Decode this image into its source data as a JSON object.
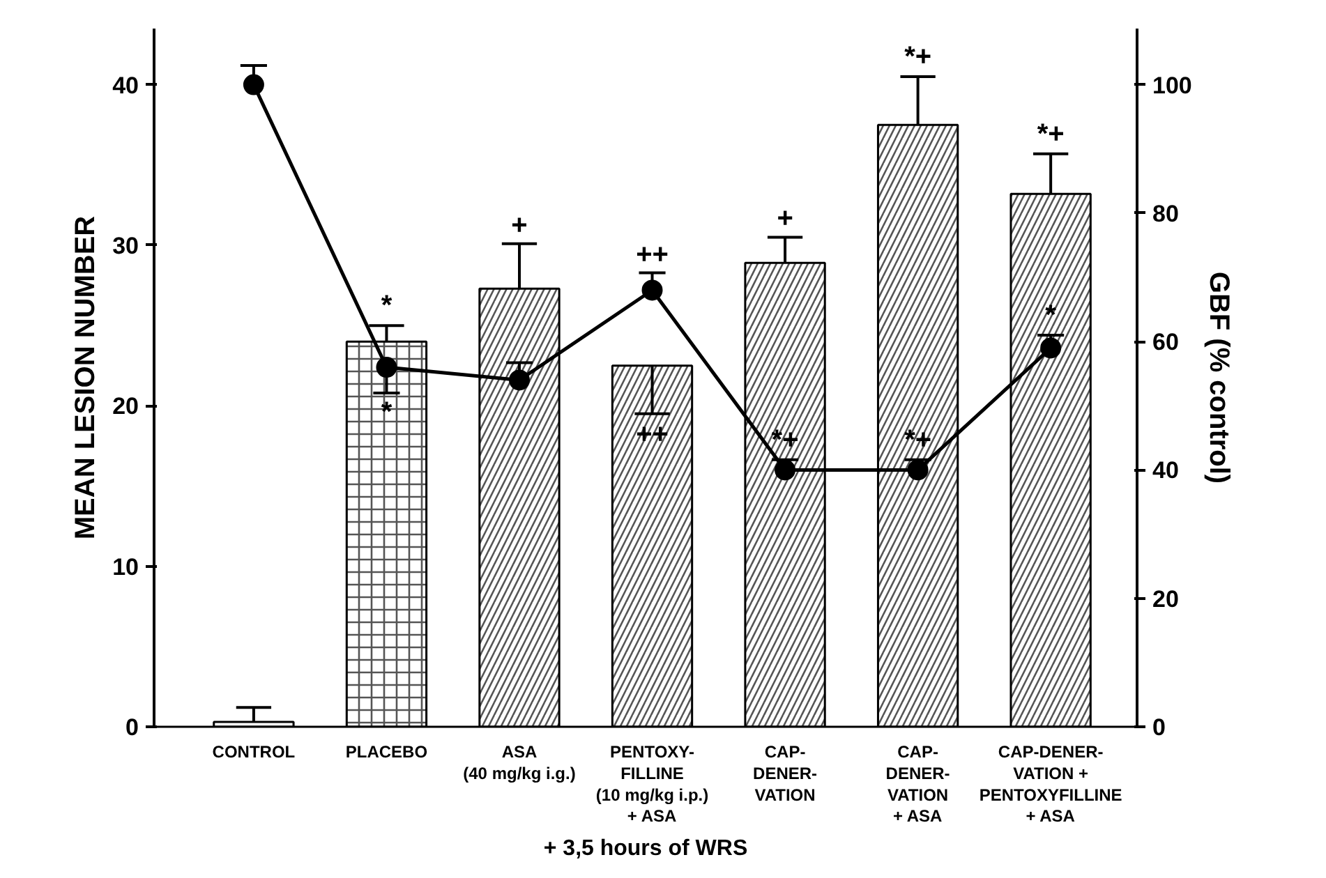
{
  "chart_data": {
    "type": "bar",
    "ylabel": "MEAN LESION NUMBER",
    "y2label": "GBF (% control)",
    "categories": [
      "CONTROL",
      "PLACEBO",
      "ASA\n(40 mg/kg i.g.)",
      "PENTOXY-\nFILLINE\n(10 mg/kg i.p.)\n+ ASA",
      "CAP-\nDENER-\nVATION",
      "CAP-\nDENER-\nVATION\n+ ASA",
      "CAP-DENER-\nVATION +\nPENTOXYFILLINE\n+ ASA"
    ],
    "series": [
      {
        "color": "#ffffff",
        "values": [
          0.3,
          24,
          27.3,
          22.5,
          28.9,
          37.5,
          33.2
        ],
        "errors": [
          [
            0.3,
            1.2
          ],
          [
            24,
            25
          ],
          [
            27.3,
            30.1
          ],
          [
            19.5,
            22.5
          ],
          [
            28.9,
            30.5
          ],
          [
            37.5,
            40.5
          ],
          [
            33.2,
            35.7
          ]
        ]
      },
      {
        "type": "line",
        "axis": "y2",
        "color": "#000000",
        "marker": "circle",
        "values": [
          100,
          56,
          54,
          68,
          40,
          40,
          59
        ],
        "errors": [
          [
            100,
            103
          ],
          [
            52,
            56
          ],
          [
            54,
            56.7
          ],
          [
            68,
            70.7
          ],
          [
            40,
            41.6
          ],
          [
            40,
            41.6
          ],
          [
            59,
            61
          ]
        ]
      }
    ],
    "ylim": [
      0,
      43.5
    ],
    "yticks": [
      0,
      10,
      20,
      30,
      40
    ],
    "y2lim": [
      0,
      108.75
    ],
    "y2ticks": [
      0,
      20,
      40,
      60,
      80,
      100
    ],
    "annotations": [
      {
        "text": "*",
        "x": "PLACEBO",
        "y": 24
      },
      {
        "text": "*",
        "x": "PLACEBO",
        "y": 22.4
      },
      {
        "text": "+",
        "x": "ASA\n(40 mg/kg i.g.)",
        "y": 27.3
      },
      {
        "text": "++",
        "x": "PENTOXY-\nFILLINE\n(10 mg/kg i.p.)\n+ ASA",
        "y": 27.2
      },
      {
        "text": "++",
        "x": "PENTOXY-\nFILLINE\n(10 mg/kg i.p.)\n+ ASA",
        "y": 22.5
      },
      {
        "text": "+",
        "x": "CAP-\nDENER-\nVATION",
        "y": 28.9
      },
      {
        "text": "*+",
        "x": "CAP-\nDENER-\nVATION",
        "y": 16
      },
      {
        "text": "*+",
        "x": "CAP-\nDENER-\nVATION\n+ ASA",
        "y": 37.5
      },
      {
        "text": "*+",
        "x": "CAP-\nDENER-\nVATION\n+ ASA",
        "y": 16
      },
      {
        "text": "*+",
        "x": "CAP-DENER-\nVATION +\nPENTOXYFILLINE\n+ ASA",
        "y": 33.2
      },
      {
        "text": "*",
        "x": "CAP-DENER-\nVATION +\nPENTOXYFILLINE\n+ ASA",
        "y": 23.6
      },
      "+ 3,5 hours of WRS"
    ],
    "grid": false
  }
}
